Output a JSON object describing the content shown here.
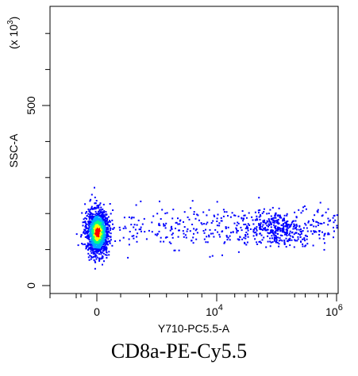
{
  "caption": "CD8a-PE-Cy5.5",
  "chart_data": {
    "type": "scatter",
    "title": "",
    "xlabel": "Y710-PC5.5-A",
    "ylabel": "SSC-A",
    "y_multiplier_label": "(x 10",
    "y_multiplier_exp": "3",
    "y_multiplier_close": ")",
    "x_scale": "biexponential",
    "x_ticks": [
      {
        "value": 0,
        "base": "0",
        "exp": ""
      },
      {
        "value": 10000,
        "base": "10",
        "exp": "4"
      },
      {
        "value": 1000000,
        "base": "10",
        "exp": "6"
      }
    ],
    "y_ticks": [
      {
        "value": 0,
        "label": "0"
      },
      {
        "value": 500,
        "label": "500"
      }
    ],
    "ylim": [
      0,
      750
    ],
    "grid": false,
    "legend": "none",
    "density_colors": [
      "#0000ff",
      "#00aaff",
      "#00ff88",
      "#ffff00",
      "#ff0000"
    ],
    "populations": [
      {
        "name_hidden": "neg",
        "x_center": 0,
        "y_center": 150,
        "count": 1400,
        "density": "high"
      },
      {
        "name_hidden": "pos",
        "x_center": 100000,
        "y_center": 160,
        "count": 260,
        "density": "medium"
      },
      {
        "name_hidden": "spread",
        "x_from": 1000,
        "x_to": 1000000,
        "y_center": 160,
        "count": 420,
        "density": "low"
      }
    ]
  }
}
